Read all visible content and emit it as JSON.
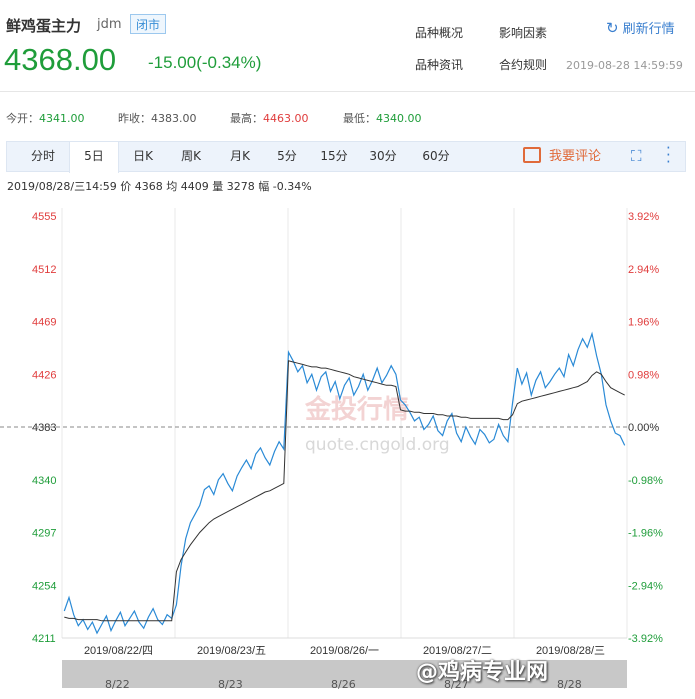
{
  "header": {
    "name": "鲜鸡蛋主力",
    "code": "jdm",
    "status": "闭市",
    "price": "4368.00",
    "change": "-15.00(-0.34%)",
    "links": [
      "品种概况",
      "影响因素",
      "品种资讯",
      "合约规则"
    ],
    "refresh_label": "刷新行情",
    "timestamp": "2019-08-28 14:59:59"
  },
  "stats": {
    "open_label": "今开：",
    "open": "4341.00",
    "prev_label": "昨收：",
    "prev": "4383.00",
    "high_label": "最高：",
    "high": "4463.00",
    "low_label": "最低：",
    "low": "4340.00"
  },
  "tabs": [
    "分时",
    "5日",
    "日K",
    "周K",
    "月K",
    "5分",
    "15分",
    "30分",
    "60分"
  ],
  "active_tab": "5日",
  "comment_label": "我要评论",
  "info_line": "2019/08/28/三14:59  价 4368  均 4409  量 3278  幅 -0.34%",
  "watermark": {
    "brand": "金投行情",
    "url": "quote.cngold.org",
    "corner": "@鸡病专业网"
  },
  "colors": {
    "up": "#e03c3c",
    "down": "#1f9d3a",
    "line": "#2a8ad6",
    "avg": "#333333",
    "accent": "#3a7fcf"
  },
  "chart_data": {
    "type": "line",
    "prev_close": 4383,
    "ylim": [
      4211,
      4555
    ],
    "y_ticks": [
      "4555",
      "4512",
      "4469",
      "4426",
      "4383",
      "4340",
      "4297",
      "4254",
      "4211"
    ],
    "pct_ticks": [
      "3.92%",
      "2.94%",
      "1.96%",
      "0.98%",
      "0.00%",
      "-0.98%",
      "-1.96%",
      "-2.94%",
      "-3.92%"
    ],
    "x_labels": [
      "2019/08/22/四",
      "2019/08/23/五",
      "2019/08/26/一",
      "2019/08/27/二",
      "2019/08/28/三"
    ],
    "navigator_labels": [
      "8/22",
      "8/23",
      "8/26",
      "8/27",
      "8/28"
    ],
    "series": [
      {
        "name": "价",
        "values": [
          4233,
          4244,
          4230,
          4221,
          4226,
          4218,
          4224,
          4215,
          4222,
          4229,
          4217,
          4225,
          4232,
          4221,
          4227,
          4233,
          4224,
          4219,
          4228,
          4235,
          4226,
          4222,
          4230,
          4227,
          4238,
          4270,
          4292,
          4305,
          4312,
          4319,
          4332,
          4335,
          4328,
          4340,
          4345,
          4337,
          4331,
          4343,
          4350,
          4356,
          4349,
          4361,
          4366,
          4358,
          4352,
          4363,
          4371,
          4365,
          4444,
          4437,
          4428,
          4433,
          4419,
          4426,
          4413,
          4424,
          4428,
          4412,
          4420,
          4406,
          4417,
          4423,
          4409,
          4416,
          4426,
          4413,
          4421,
          4431,
          4419,
          4425,
          4433,
          4426,
          4405,
          4401,
          4395,
          4388,
          4391,
          4381,
          4385,
          4392,
          4380,
          4376,
          4388,
          4394,
          4378,
          4371,
          4383,
          4375,
          4369,
          4381,
          4377,
          4370,
          4373,
          4385,
          4376,
          4371,
          4403,
          4431,
          4418,
          4427,
          4409,
          4421,
          4428,
          4415,
          4420,
          4426,
          4431,
          4424,
          4442,
          4433,
          4446,
          4455,
          4448,
          4459,
          4441,
          4426,
          4401,
          4388,
          4378,
          4376,
          4368
        ]
      },
      {
        "name": "均",
        "values": [
          4228,
          4227,
          4227,
          4226,
          4226,
          4226,
          4226,
          4226,
          4225,
          4225,
          4225,
          4225,
          4225,
          4225,
          4225,
          4225,
          4225,
          4225,
          4225,
          4225,
          4225,
          4225,
          4225,
          4225,
          4265,
          4275,
          4281,
          4287,
          4292,
          4297,
          4301,
          4305,
          4308,
          4310,
          4312,
          4314,
          4316,
          4318,
          4320,
          4322,
          4324,
          4326,
          4328,
          4330,
          4331,
          4333,
          4335,
          4337,
          4437,
          4436,
          4435,
          4434,
          4433,
          4432,
          4432,
          4431,
          4431,
          4430,
          4429,
          4428,
          4427,
          4426,
          4424,
          4423,
          4422,
          4421,
          4420,
          4419,
          4418,
          4417,
          4417,
          4416,
          4397,
          4396,
          4396,
          4395,
          4395,
          4394,
          4394,
          4394,
          4393,
          4393,
          4392,
          4392,
          4392,
          4391,
          4391,
          4390,
          4390,
          4390,
          4390,
          4390,
          4390,
          4390,
          4389,
          4389,
          4393,
          4402,
          4404,
          4405,
          4406,
          4407,
          4408,
          4409,
          4410,
          4411,
          4412,
          4413,
          4414,
          4415,
          4416,
          4418,
          4420,
          4425,
          4428,
          4426,
          4420,
          4415,
          4413,
          4411,
          4409
        ]
      }
    ],
    "grid": true
  }
}
